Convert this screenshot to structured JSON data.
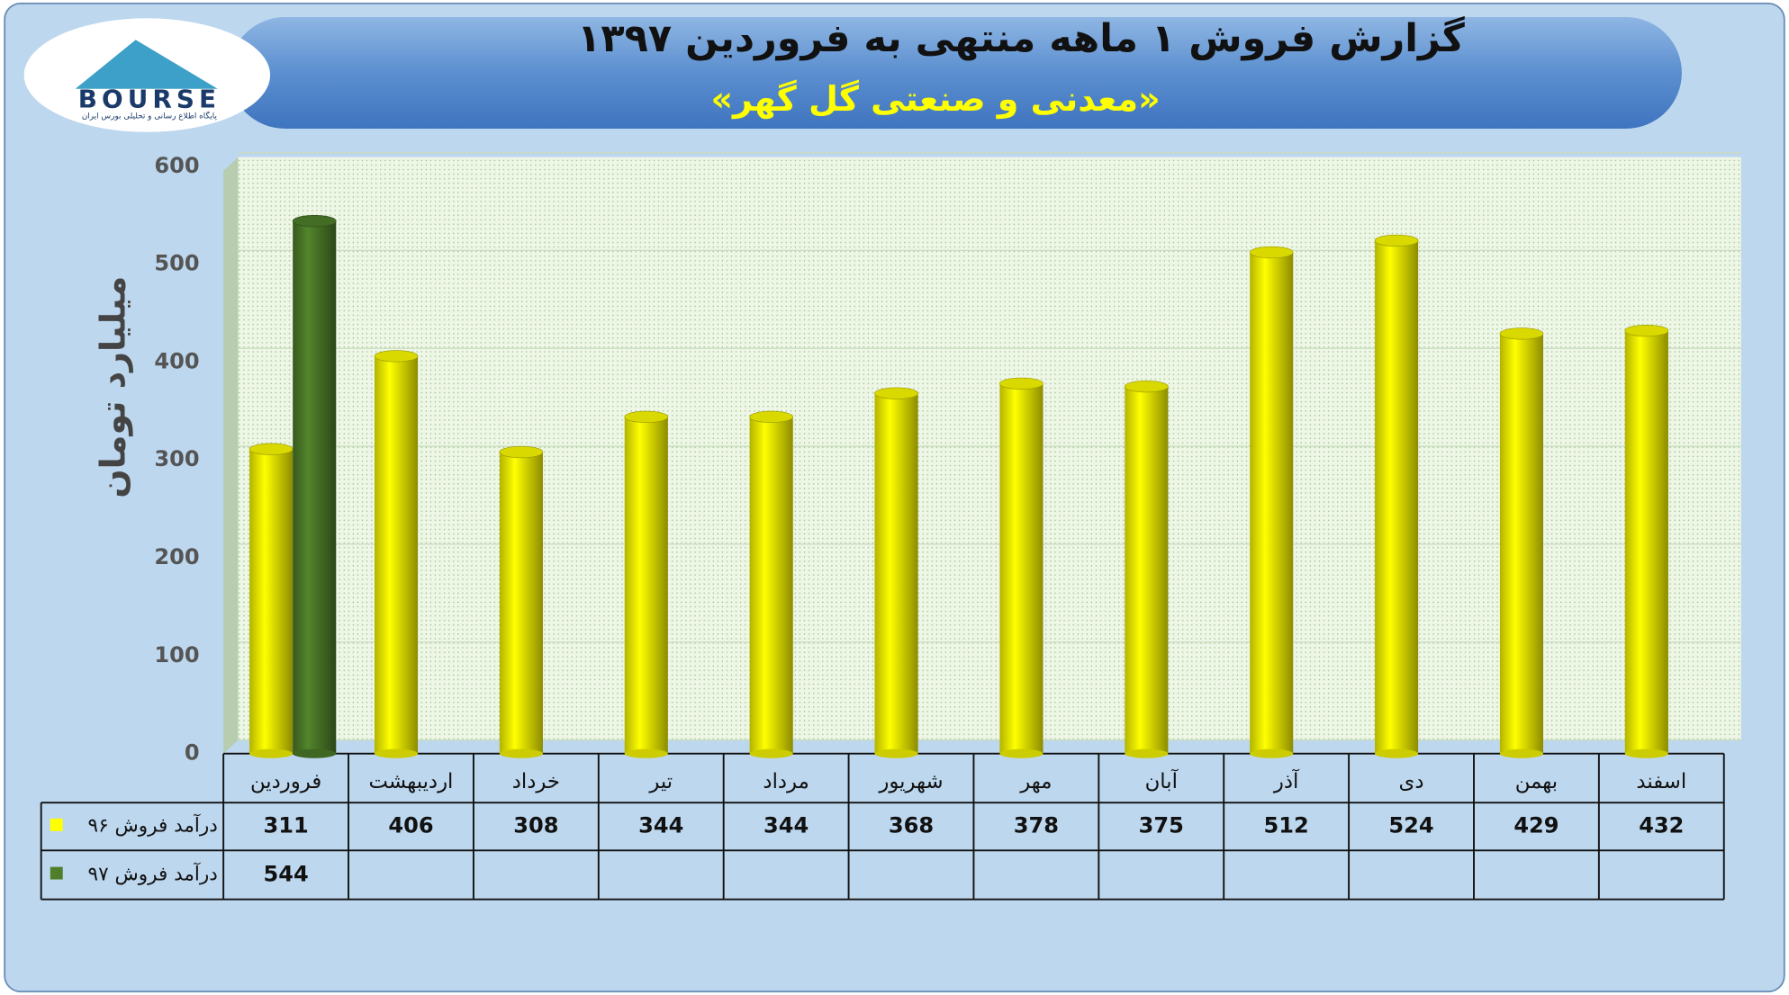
{
  "logo": {
    "name": "BOURSE",
    "tagline": "پایگاه اطلاع رسانی و تحلیلی بورس ایران"
  },
  "chart_data": {
    "type": "bar",
    "title": "گزارش فروش ۱ ماهه منتهی به فروردین ۱۳۹۷",
    "subtitle": "«معدنی و صنعتی گل گهر»",
    "y_label": "میلیارد تومان",
    "categories": [
      "فروردین",
      "اردیبهشت",
      "خرداد",
      "تیر",
      "مرداد",
      "شهریور",
      "مهر",
      "آبان",
      "آذر",
      "دی",
      "بهمن",
      "اسفند"
    ],
    "series": [
      {
        "name": "درآمد فروش ۹۶",
        "color": "#ffff00",
        "values": [
          311,
          406,
          308,
          344,
          344,
          368,
          378,
          375,
          512,
          524,
          429,
          432
        ]
      },
      {
        "name": "درآمد فروش ۹۷",
        "color": "#4f7f2a",
        "values": [
          544,
          null,
          null,
          null,
          null,
          null,
          null,
          null,
          null,
          null,
          null,
          null
        ]
      }
    ],
    "ylim": [
      0,
      600
    ],
    "yticks": [
      0,
      100,
      200,
      300,
      400,
      500,
      600
    ],
    "grid": true
  }
}
